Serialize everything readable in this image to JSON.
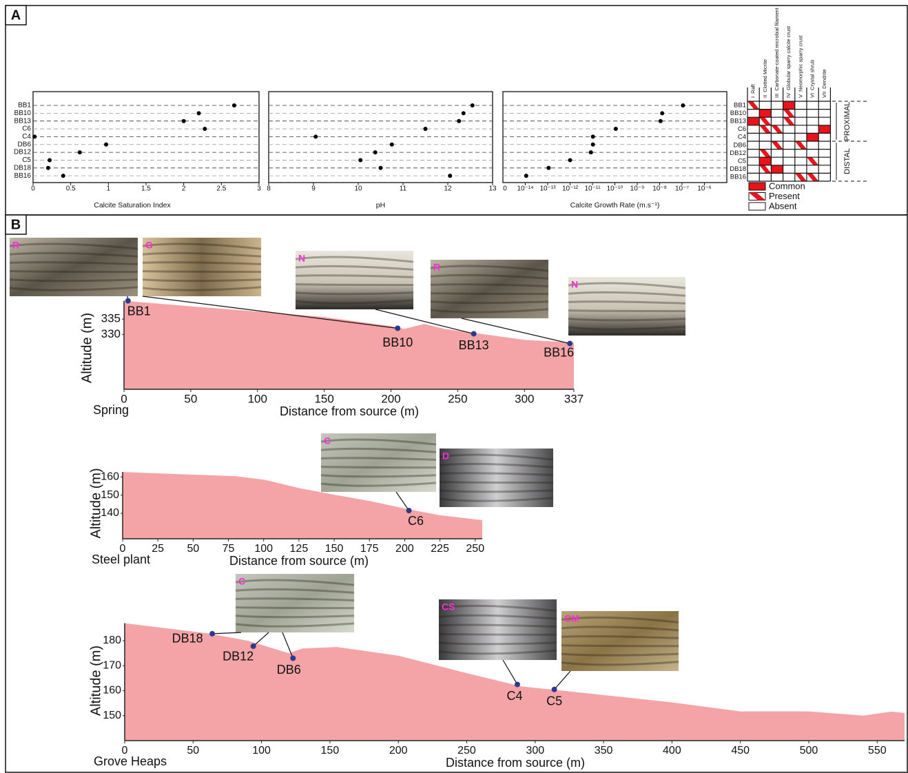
{
  "panel_labels": [
    "A",
    "B"
  ],
  "chart_data": [
    {
      "type": "dotpanels",
      "categories": [
        "BB1",
        "BB10",
        "BB13",
        "C6",
        "C4",
        "DB6",
        "DB12",
        "C5",
        "DB18",
        "BB16"
      ],
      "panels": [
        {
          "x_label": "Calcite Saturation Index",
          "values": [
            2.67,
            2.2,
            2.0,
            2.28,
            0.02,
            0.97,
            0.62,
            0.22,
            0.2,
            0.4
          ],
          "xlim": [
            0,
            3
          ],
          "xticks": [
            0,
            0.5,
            1,
            1.5,
            2,
            2.5,
            3
          ]
        },
        {
          "x_label": "pH",
          "values": [
            12.55,
            12.35,
            12.25,
            11.5,
            9.05,
            10.75,
            10.38,
            10.05,
            10.5,
            12.05
          ],
          "xlim": [
            8,
            13
          ],
          "xticks": [
            8,
            9,
            10,
            11,
            12,
            13
          ]
        },
        {
          "x_label": "Calcite Growth Rate (m.s⁻¹)",
          "x_log": true,
          "x_zero_label": "0",
          "values": [
            1.1e-07,
            1.3e-08,
            1.1e-08,
            1.1e-10,
            1.05e-11,
            1.05e-11,
            8.5e-12,
            1e-12,
            1.1e-13,
            1.1e-14
          ],
          "xlim": [
            1e-15,
            1e-05
          ],
          "xticks": [
            {
              "value": 1e-14,
              "label": "10⁻¹⁴"
            },
            {
              "value": 1e-13,
              "label": "10⁻¹³"
            },
            {
              "value": 1e-12,
              "label": "10⁻¹²"
            },
            {
              "value": 1e-11,
              "label": "10⁻¹¹"
            },
            {
              "value": 1e-10,
              "label": "10⁻¹⁰"
            },
            {
              "value": 1e-09,
              "label": "10⁻⁹"
            },
            {
              "value": 1e-08,
              "label": "10⁻⁸"
            },
            {
              "value": 1e-07,
              "label": "10⁻⁷"
            },
            {
              "value": 1e-06,
              "label": "10⁻⁶"
            }
          ]
        }
      ]
    },
    {
      "type": "area",
      "site": "Spring",
      "x_label": "Distance from source (m)",
      "y_label": "Altitude (m)",
      "color": "#f4a3a6",
      "x": [
        0,
        50,
        100,
        150,
        200,
        210,
        225,
        240,
        262,
        300,
        337
      ],
      "y": [
        341,
        339.2,
        337.5,
        335.7,
        332.7,
        331.8,
        333.4,
        331.8,
        330.5,
        328.2,
        327.3
      ],
      "xlim": [
        0,
        337
      ],
      "ylim": [
        312,
        342.5
      ],
      "xticks": [
        0,
        50,
        100,
        150,
        200,
        250,
        300,
        337
      ],
      "yticks": [
        330,
        335
      ],
      "samples": {
        "color": "#2b3a8c",
        "names": [
          "BB1",
          "BB10",
          "BB13",
          "BB16"
        ],
        "x": [
          3,
          205,
          262,
          334
        ],
        "y": [
          341,
          332,
          330.2,
          327
        ]
      },
      "photos": [
        "R",
        "G",
        "N",
        "R",
        "N"
      ]
    },
    {
      "type": "area",
      "site": "Steel plant",
      "x_label": "Distance from source (m)",
      "y_label": "Altitude (m)",
      "color": "#f4a3a6",
      "x": [
        0,
        40,
        80,
        100,
        125,
        150,
        175,
        200,
        225,
        255
      ],
      "y": [
        162.7,
        161.5,
        160.4,
        158.5,
        153.9,
        150.2,
        146.8,
        142.6,
        138.9,
        136.2
      ],
      "xlim": [
        0,
        255
      ],
      "ylim": [
        126,
        165
      ],
      "xticks": [
        0,
        25,
        50,
        75,
        100,
        125,
        150,
        175,
        200,
        225,
        250
      ],
      "yticks": [
        140,
        150,
        160
      ],
      "samples": {
        "color": "#2b3a8c",
        "names": [
          "C6"
        ],
        "x": [
          203
        ],
        "y": [
          141.5
        ]
      },
      "photos": [
        "C",
        "D"
      ]
    },
    {
      "type": "area",
      "site": "Grove Heaps",
      "x_label": "Distance from source (m)",
      "y_label": "Altitude (m)",
      "color": "#f4a3a6",
      "x": [
        0,
        30,
        60,
        90,
        120,
        130,
        155,
        200,
        250,
        290,
        320,
        400,
        450,
        500,
        540,
        560,
        570
      ],
      "y": [
        187,
        185,
        183,
        180,
        175,
        176.9,
        177.5,
        174,
        167,
        161.7,
        160,
        155.3,
        151.7,
        151.7,
        150,
        151.6,
        151.1
      ],
      "xlim": [
        0,
        570
      ],
      "ylim": [
        140,
        188
      ],
      "xticks": [
        0,
        50,
        100,
        150,
        200,
        250,
        300,
        350,
        400,
        450,
        500,
        550
      ],
      "yticks": [
        150,
        160,
        170,
        180
      ],
      "samples": {
        "color": "#2b3a8c",
        "names": [
          "DB18",
          "DB12",
          "DB6",
          "C4",
          "C5"
        ],
        "x": [
          64,
          94,
          123,
          287,
          314
        ],
        "y": [
          182.8,
          177.8,
          173,
          162.5,
          160.5
        ]
      },
      "photos": [
        "C",
        "CS",
        "CM"
      ]
    }
  ],
  "fabric_table": {
    "columns": [
      {
        "numeral": "I",
        "name": "Raft"
      },
      {
        "numeral": "II",
        "name": "Clotted Micrite"
      },
      {
        "numeral": "III",
        "name": "Carbonate-coated microbial filament"
      },
      {
        "numeral": "IV",
        "name": "Globular sparry calcite crust"
      },
      {
        "numeral": "V",
        "name": "Neomorphic sparry crust"
      },
      {
        "numeral": "VI",
        "name": "Crystal shrub"
      },
      {
        "numeral": "VII",
        "name": "Dendrite"
      }
    ],
    "rows": [
      "BB1",
      "BB10",
      "BB13",
      "C6",
      "C4",
      "DB6",
      "DB12",
      "C5",
      "DB18",
      "BB16"
    ],
    "cells": [
      [
        "Present",
        "Absent",
        "Absent",
        "Common",
        "Absent",
        "Absent",
        "Absent"
      ],
      [
        "Absent",
        "Common",
        "Absent",
        "Present",
        "Absent",
        "Absent",
        "Absent"
      ],
      [
        "Common",
        "Present",
        "Absent",
        "Present",
        "Absent",
        "Absent",
        "Absent"
      ],
      [
        "Absent",
        "Present",
        "Present",
        "Absent",
        "Absent",
        "Absent",
        "Common"
      ],
      [
        "Absent",
        "Absent",
        "Absent",
        "Absent",
        "Absent",
        "Common",
        "Absent"
      ],
      [
        "Absent",
        "Absent",
        "Present",
        "Absent",
        "Present",
        "Absent",
        "Absent"
      ],
      [
        "Absent",
        "Present",
        "Absent",
        "Absent",
        "Absent",
        "Absent",
        "Absent"
      ],
      [
        "Absent",
        "Common",
        "Absent",
        "Absent",
        "Absent",
        "Present",
        "Absent"
      ],
      [
        "Absent",
        "Present",
        "Common",
        "Absent",
        "Absent",
        "Absent",
        "Absent"
      ],
      [
        "Absent",
        "Absent",
        "Absent",
        "Absent",
        "Present",
        "Present",
        "Absent"
      ]
    ],
    "legend": [
      "Common",
      "Present",
      "Absent"
    ],
    "groups": [
      {
        "name": "PROXIMAL",
        "rows": 5
      },
      {
        "name": "DISTAL",
        "rows": 5
      }
    ]
  }
}
